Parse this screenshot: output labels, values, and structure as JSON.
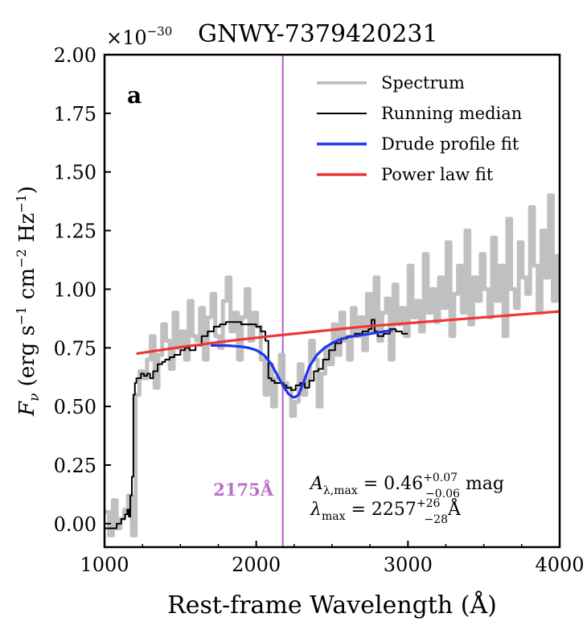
{
  "chart_data": {
    "type": "line",
    "title": "GNWY-7379420231",
    "y_multiplier": "×10",
    "y_multiplier_exp": "−30",
    "panel_label": "a",
    "xlabel": "Rest-frame Wavelength (Å)",
    "ylabel": {
      "main": "F",
      "sub": "ν",
      "units_pre": " (erg s",
      "exp1": "−1",
      "units_mid": " cm",
      "exp2": "−2",
      "units_mid2": " Hz",
      "exp3": "−1",
      "units_post": ")"
    },
    "xlim": [
      1000,
      4000
    ],
    "ylim": [
      -0.1,
      2.0
    ],
    "xticks": [
      1000,
      2000,
      3000,
      4000
    ],
    "xtick_labels": [
      "1000",
      "2000",
      "3000",
      "4000"
    ],
    "yticks": [
      0.0,
      0.25,
      0.5,
      0.75,
      1.0,
      1.25,
      1.5,
      1.75,
      2.0
    ],
    "ytick_labels": [
      "0.00",
      "0.25",
      "0.50",
      "0.75",
      "1.00",
      "1.25",
      "1.50",
      "1.75",
      "2.00"
    ],
    "grid": false,
    "legend_position": "top-right",
    "legend": [
      {
        "label": "Spectrum",
        "color": "#b9b9b9"
      },
      {
        "label": "Running median",
        "color": "#000000"
      },
      {
        "label": "Drude profile fit",
        "color": "#2233ee"
      },
      {
        "label": "Power law fit",
        "color": "#f03535"
      }
    ],
    "vline": {
      "x": 2175,
      "label": "2175Å",
      "color": "#b870c8"
    },
    "annotations": {
      "amax": {
        "sym": "A",
        "sub": "λ,max",
        "eq": " = 0.46",
        "sup": "+0.07",
        "sub2": "−0.06",
        "unit": " mag"
      },
      "lmax": {
        "sym": "λ",
        "sub": "max",
        "eq": " = 2257",
        "sup": "+26",
        "sub2": "−28",
        "unit": "Å"
      }
    },
    "series": [
      {
        "name": "Spectrum",
        "color": "#b9b9b9",
        "x": [
          1005,
          1030,
          1055,
          1080,
          1105,
          1130,
          1155,
          1180,
          1205,
          1230,
          1255,
          1280,
          1305,
          1330,
          1355,
          1380,
          1405,
          1430,
          1455,
          1480,
          1505,
          1530,
          1555,
          1580,
          1605,
          1630,
          1655,
          1680,
          1705,
          1730,
          1755,
          1780,
          1805,
          1830,
          1855,
          1880,
          1905,
          1930,
          1955,
          1980,
          2005,
          2030,
          2055,
          2080,
          2105,
          2130,
          2155,
          2180,
          2205,
          2230,
          2255,
          2280,
          2305,
          2330,
          2355,
          2380,
          2405,
          2430,
          2455,
          2480,
          2505,
          2530,
          2555,
          2580,
          2605,
          2630,
          2655,
          2680,
          2705,
          2730,
          2755,
          2780,
          2805,
          2830,
          2855,
          2880,
          2905,
          2930,
          2955,
          2980,
          3005,
          3030,
          3055,
          3080,
          3105,
          3130,
          3155,
          3180,
          3205,
          3230,
          3255,
          3280,
          3305,
          3330,
          3355,
          3380,
          3405,
          3430,
          3455,
          3480,
          3505,
          3530,
          3555,
          3580,
          3605,
          3630,
          3655,
          3680,
          3705,
          3730,
          3755,
          3780,
          3805,
          3830,
          3855,
          3880,
          3905,
          3930,
          3955,
          3980
        ],
        "y": [
          0.05,
          -0.05,
          0.1,
          -0.02,
          0.02,
          0.06,
          0.12,
          -0.05,
          0.55,
          0.65,
          0.62,
          0.7,
          0.8,
          0.58,
          0.72,
          0.85,
          0.78,
          0.66,
          0.9,
          0.75,
          0.82,
          0.7,
          0.95,
          0.8,
          0.78,
          0.92,
          0.7,
          0.88,
          0.98,
          0.8,
          0.75,
          0.95,
          1.05,
          0.82,
          0.9,
          0.7,
          0.88,
          1.0,
          0.78,
          0.9,
          0.84,
          0.7,
          0.55,
          0.68,
          0.5,
          0.62,
          0.72,
          0.6,
          0.58,
          0.46,
          0.52,
          0.68,
          0.55,
          0.62,
          0.78,
          0.7,
          0.5,
          0.64,
          0.75,
          0.68,
          0.85,
          0.72,
          0.9,
          0.78,
          0.7,
          0.92,
          0.8,
          0.88,
          0.74,
          0.98,
          0.82,
          1.05,
          0.78,
          0.9,
          0.96,
          0.7,
          1.02,
          0.85,
          0.92,
          0.8,
          1.1,
          0.88,
          0.95,
          0.82,
          1.15,
          0.9,
          1.0,
          0.86,
          1.05,
          0.92,
          1.2,
          0.8,
          0.98,
          1.1,
          0.9,
          1.25,
          0.85,
          1.05,
          0.95,
          1.15,
          1.0,
          0.88,
          1.22,
          0.95,
          1.1,
          0.8,
          1.3,
          1.0,
          0.92,
          1.2,
          1.05,
          0.98,
          1.35,
          1.1,
          0.9,
          1.25,
          1.05,
          1.4,
          0.95,
          1.15
        ]
      },
      {
        "name": "Running median",
        "color": "#000000",
        "x": [
          1000,
          1060,
          1080,
          1110,
          1135,
          1150,
          1160,
          1170,
          1180,
          1190,
          1200,
          1210,
          1220,
          1240,
          1260,
          1280,
          1300,
          1320,
          1350,
          1380,
          1400,
          1430,
          1460,
          1500,
          1530,
          1560,
          1600,
          1640,
          1680,
          1720,
          1760,
          1800,
          1850,
          1900,
          1950,
          2000,
          2030,
          2060,
          2080,
          2100,
          2120,
          2150,
          2180,
          2200,
          2230,
          2260,
          2290,
          2320,
          2350,
          2380,
          2410,
          2440,
          2480,
          2520,
          2560,
          2600,
          2650,
          2700,
          2740,
          2760,
          2780,
          2800,
          2840,
          2880,
          2920,
          2960,
          3000
        ],
        "y": [
          -0.02,
          -0.02,
          0.0,
          0.02,
          0.04,
          0.06,
          0.03,
          0.12,
          0.2,
          0.55,
          0.6,
          0.62,
          0.62,
          0.64,
          0.63,
          0.64,
          0.62,
          0.65,
          0.68,
          0.69,
          0.7,
          0.71,
          0.72,
          0.74,
          0.75,
          0.74,
          0.76,
          0.8,
          0.82,
          0.84,
          0.85,
          0.86,
          0.86,
          0.85,
          0.85,
          0.84,
          0.82,
          0.78,
          0.62,
          0.61,
          0.6,
          0.6,
          0.59,
          0.58,
          0.57,
          0.59,
          0.6,
          0.58,
          0.61,
          0.65,
          0.66,
          0.7,
          0.74,
          0.77,
          0.79,
          0.8,
          0.81,
          0.82,
          0.83,
          0.87,
          0.82,
          0.8,
          0.81,
          0.83,
          0.82,
          0.81,
          0.81
        ]
      },
      {
        "name": "Drude profile fit",
        "color": "#2233ee",
        "x": [
          1700,
          1800,
          1900,
          1950,
          2000,
          2050,
          2100,
          2150,
          2180,
          2210,
          2240,
          2257,
          2280,
          2310,
          2350,
          2400,
          2450,
          2500,
          2550,
          2600,
          2650,
          2700,
          2750,
          2800,
          2850,
          2900
        ],
        "y": [
          0.76,
          0.76,
          0.755,
          0.75,
          0.74,
          0.72,
          0.68,
          0.62,
          0.585,
          0.555,
          0.54,
          0.54,
          0.55,
          0.6,
          0.67,
          0.72,
          0.75,
          0.77,
          0.785,
          0.795,
          0.8,
          0.805,
          0.81,
          0.815,
          0.82,
          0.825
        ]
      },
      {
        "name": "Power law fit",
        "color": "#f03535",
        "x": [
          1210,
          1500,
          1800,
          2100,
          2400,
          2700,
          3000,
          3300,
          3600,
          3900,
          4000
        ],
        "y": [
          0.725,
          0.753,
          0.778,
          0.8,
          0.82,
          0.84,
          0.855,
          0.87,
          0.885,
          0.9,
          0.905
        ]
      }
    ]
  }
}
